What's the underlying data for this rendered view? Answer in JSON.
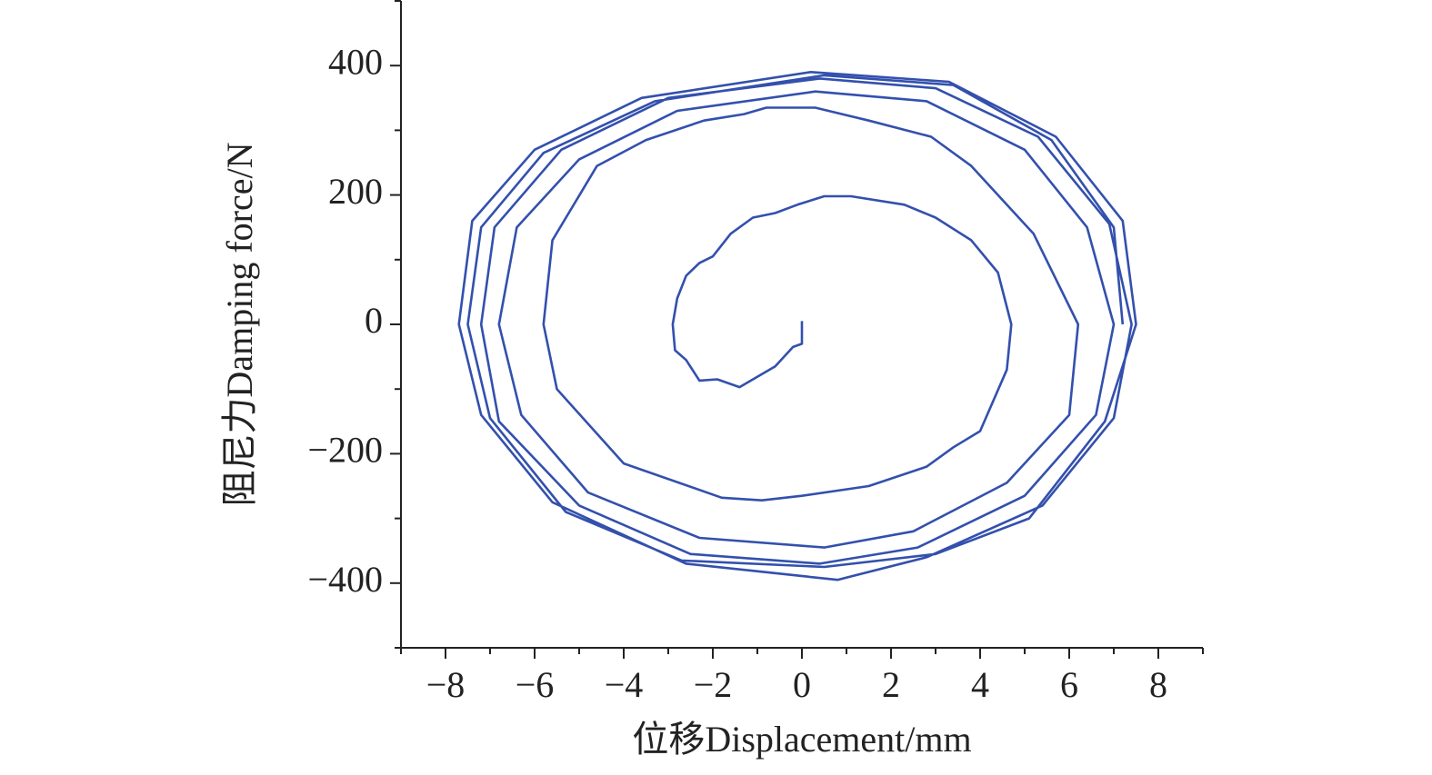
{
  "chart_data": {
    "type": "line",
    "xlabel": "位移Displacement/mm",
    "ylabel": "阻尼力Damping force/N",
    "color": "#3350ad",
    "xlim": [
      -9,
      9
    ],
    "ylim": [
      -500,
      500
    ],
    "xticks": [
      {
        "value": -8,
        "label": "−8"
      },
      {
        "value": -6,
        "label": "−6"
      },
      {
        "value": -4,
        "label": "−4"
      },
      {
        "value": -2,
        "label": "−2"
      },
      0,
      2,
      4,
      6,
      8
    ],
    "yticks": [
      {
        "value": -400,
        "label": "−400"
      },
      {
        "value": -200,
        "label": "−200"
      },
      0,
      200,
      400
    ],
    "x_minor_ticks": [
      -9,
      -7,
      -5,
      -3,
      -1,
      1,
      3,
      5,
      7,
      9
    ],
    "y_minor_ticks": [
      -500,
      -300,
      -100,
      100,
      300,
      500
    ],
    "x": [
      0.0,
      0.0,
      -0.2,
      -0.6,
      -1.4,
      -1.9,
      -2.3,
      -2.6,
      -2.85,
      -2.9,
      -2.8,
      -2.6,
      -2.3,
      -2.0,
      -1.6,
      -1.1,
      -0.6,
      -0.1,
      0.5,
      1.1,
      2.3,
      3.0,
      3.8,
      4.4,
      4.7,
      4.6,
      4.0,
      3.4,
      2.8,
      1.5,
      0.0,
      -0.9,
      -1.8,
      -4.0,
      -5.5,
      -5.8,
      -5.6,
      -4.6,
      -3.5,
      -2.2,
      -1.3,
      -0.8,
      0.3,
      1.5,
      2.9,
      3.8,
      5.2,
      6.2,
      6.0,
      4.6,
      2.5,
      0.5,
      -2.3,
      -4.8,
      -6.3,
      -6.8,
      -6.4,
      -5.0,
      -2.8,
      0.3,
      2.8,
      5.0,
      6.4,
      7.0,
      6.6,
      5.0,
      2.6,
      0.4,
      -2.5,
      -5.0,
      -6.8,
      -7.2,
      -6.9,
      -5.4,
      -3.0,
      0.4,
      3.0,
      5.3,
      6.9,
      7.4,
      7.0,
      5.4,
      2.8,
      0.8,
      -2.6,
      -5.6,
      -7.2,
      -7.7,
      -7.4,
      -6.0,
      -3.6,
      0.2,
      3.3,
      5.7,
      7.2,
      7.5,
      6.8,
      5.1,
      3.0,
      0.5,
      -2.7,
      -5.3,
      -7.0,
      -7.5,
      -7.2,
      -5.8,
      -3.3,
      0.5,
      3.4,
      5.6,
      7.0,
      7.2
    ],
    "values": [
      5,
      -30,
      -35,
      -65,
      -97,
      -85,
      -87,
      -55,
      -40,
      0,
      40,
      75,
      95,
      105,
      140,
      165,
      172,
      185,
      198,
      198,
      185,
      165,
      130,
      80,
      0,
      -70,
      -165,
      -190,
      -220,
      -250,
      -265,
      -272,
      -268,
      -215,
      -100,
      0,
      130,
      245,
      285,
      315,
      325,
      335,
      335,
      315,
      290,
      245,
      140,
      0,
      -140,
      -245,
      -320,
      -345,
      -330,
      -260,
      -140,
      0,
      150,
      255,
      330,
      360,
      345,
      270,
      150,
      0,
      -140,
      -265,
      -345,
      -370,
      -355,
      -280,
      -150,
      0,
      150,
      270,
      350,
      380,
      365,
      290,
      155,
      0,
      -145,
      -280,
      -360,
      -395,
      -370,
      -275,
      -140,
      0,
      160,
      270,
      350,
      390,
      375,
      290,
      160,
      0,
      -150,
      -300,
      -355,
      -375,
      -365,
      -290,
      -145,
      0,
      150,
      265,
      345,
      385,
      370,
      285,
      150,
      0
    ]
  }
}
